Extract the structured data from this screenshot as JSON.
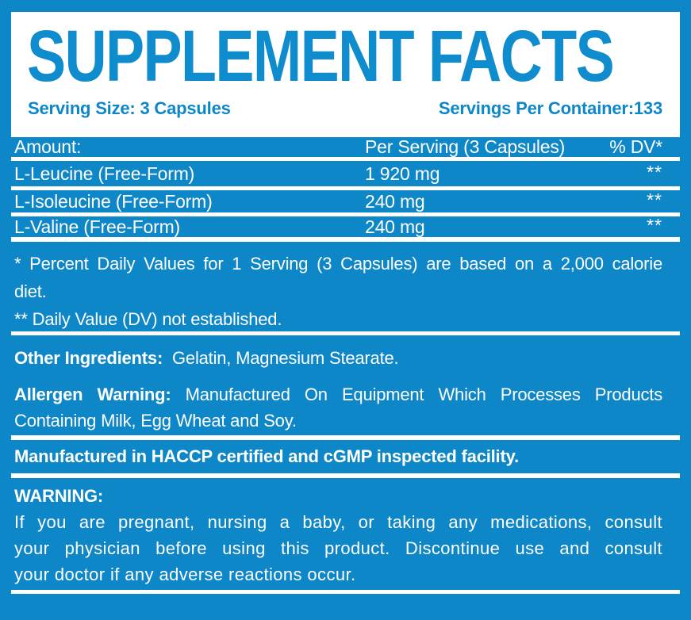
{
  "colors": {
    "brand_blue": "#0e87c8",
    "title_blue": "#0f8ccd",
    "text_on_blue": "#ffffff"
  },
  "header": {
    "title": "SUPPLEMENT FACTS",
    "serving_size": "Serving Size: 3 Capsules",
    "servings_per_container": "Servings Per Container:133"
  },
  "table": {
    "columns": {
      "amount": "Amount:",
      "per_serving": "Per Serving (3 Capsules)",
      "dv": "% DV*"
    },
    "rows": [
      {
        "name": "L-Leucine (Free-Form)",
        "per_serving": "1 920 mg",
        "dv": "**"
      },
      {
        "name": "L-Isoleucine (Free-Form)",
        "per_serving": "240 mg",
        "dv": "**"
      },
      {
        "name": "L-Valine (Free-Form)",
        "per_serving": "240 mg",
        "dv": "**"
      }
    ]
  },
  "footnotes": {
    "percent_dv_line1": "* Percent Daily Values for 1 Serving (3 Capsules) are based on a 2,000 calorie",
    "percent_dv_line2": "diet.",
    "dv_not_established": "** Daily Value (DV) not established."
  },
  "other_ingredients": {
    "label": "Other Ingredients:",
    "value": " Gelatin, Magnesium Stearate."
  },
  "allergen": {
    "label": "Allergen Warning:",
    "line1_rest": " Manufactured On Equipment Which Processes Products",
    "line2": "Containing Milk, Egg Wheat and Soy."
  },
  "manufactured": "Manufactured in HACCP certified and cGMP inspected facility.",
  "warning": {
    "label": "WARNING:",
    "line1": "If you are pregnant, nursing a baby, or taking any medications, consult",
    "line2": "your physician before using this product. Discontinue use and consult",
    "line3": "your doctor if any adverse reactions occur."
  }
}
